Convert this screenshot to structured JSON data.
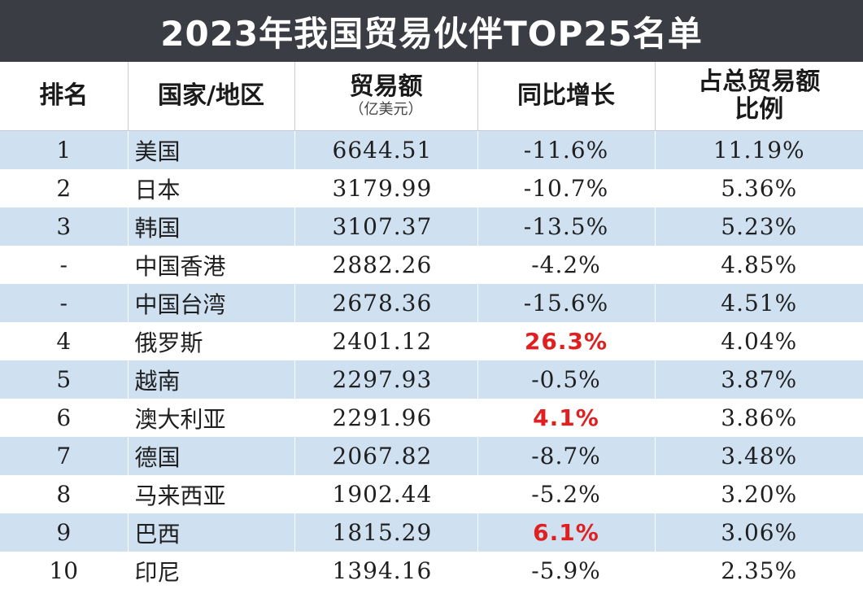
{
  "title": "2023年我国贸易伙伴TOP25名单",
  "headers": {
    "rank": "排名",
    "country": "国家/地区",
    "amount": "贸易额",
    "amount_unit": "（亿美元）",
    "growth": "同比增长",
    "share_line1": "占总贸易额",
    "share_line2": "比例"
  },
  "colors": {
    "title_bg": "#3a3e44",
    "stripe": "#cfe0f1",
    "positive_growth": "#e02020"
  },
  "rows": [
    {
      "rank": "1",
      "country": "美国",
      "amount": "6644.51",
      "growth": "-11.6%",
      "share": "11.19%"
    },
    {
      "rank": "2",
      "country": "日本",
      "amount": "3179.99",
      "growth": "-10.7%",
      "share": "5.36%"
    },
    {
      "rank": "3",
      "country": "韩国",
      "amount": "3107.37",
      "growth": "-13.5%",
      "share": "5.23%"
    },
    {
      "rank": "-",
      "country": "中国香港",
      "amount": "2882.26",
      "growth": "-4.2%",
      "share": "4.85%"
    },
    {
      "rank": "-",
      "country": "中国台湾",
      "amount": "2678.36",
      "growth": "-15.6%",
      "share": "4.51%"
    },
    {
      "rank": "4",
      "country": "俄罗斯",
      "amount": "2401.12",
      "growth": "26.3%",
      "share": "4.04%",
      "positive": true
    },
    {
      "rank": "5",
      "country": "越南",
      "amount": "2297.93",
      "growth": "-0.5%",
      "share": "3.87%"
    },
    {
      "rank": "6",
      "country": "澳大利亚",
      "amount": "2291.96",
      "growth": "4.1%",
      "share": "3.86%",
      "positive": true
    },
    {
      "rank": "7",
      "country": "德国",
      "amount": "2067.82",
      "growth": "-8.7%",
      "share": "3.48%"
    },
    {
      "rank": "8",
      "country": "马来西亚",
      "amount": "1902.44",
      "growth": "-5.2%",
      "share": "3.20%"
    },
    {
      "rank": "9",
      "country": "巴西",
      "amount": "1815.29",
      "growth": "6.1%",
      "share": "3.06%",
      "positive": true
    },
    {
      "rank": "10",
      "country": "印尼",
      "amount": "1394.16",
      "growth": "-5.9%",
      "share": "2.35%"
    }
  ]
}
